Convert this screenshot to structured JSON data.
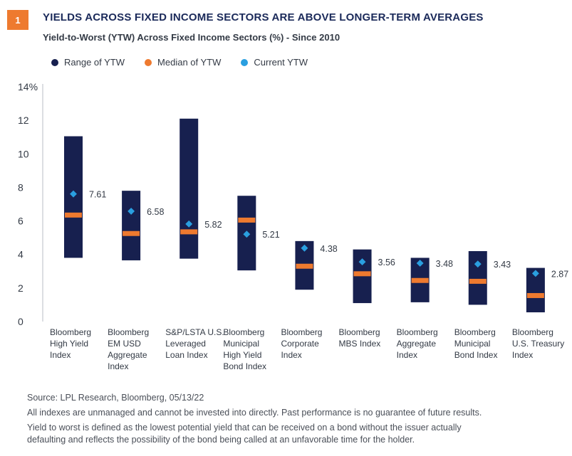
{
  "figure_number": "1",
  "colors": {
    "range": "#17204f",
    "median": "#ee7a2f",
    "current": "#2a9fe0",
    "badge": "#ee7a2f"
  },
  "chart_data": {
    "type": "range",
    "title": "YIELDS ACROSS FIXED INCOME SECTORS ARE ABOVE LONGER-TERM AVERAGES",
    "subtitle": "Yield-to-Worst (YTW) Across Fixed Income Sectors (%) - Since 2010",
    "legend": [
      "Range of YTW",
      "Median of YTW",
      "Current YTW"
    ],
    "ylim": [
      0,
      14
    ],
    "yticks": [
      "0",
      "2",
      "4",
      "6",
      "8",
      "10",
      "12",
      "14%"
    ],
    "yticks_values": [
      0,
      2,
      4,
      6,
      8,
      10,
      12,
      14
    ],
    "categories": [
      [
        "Bloomberg",
        "High Yield",
        "Index"
      ],
      [
        "Bloomberg",
        "EM USD",
        "Aggregate",
        "Index"
      ],
      [
        "S&P/LSTA U.S.",
        "Leveraged",
        "Loan Index"
      ],
      [
        "Bloomberg",
        "Municipal",
        "High Yield",
        "Bond Index"
      ],
      [
        "Bloomberg",
        "Corporate",
        "Index"
      ],
      [
        "Bloomberg",
        "MBS Index"
      ],
      [
        "Bloomberg",
        "Aggregate",
        "Index"
      ],
      [
        "Bloomberg",
        "Municipal",
        "Bond Index"
      ],
      [
        "Bloomberg",
        "U.S. Treasury",
        "Index"
      ]
    ],
    "series": {
      "range_low": [
        3.8,
        3.65,
        3.75,
        3.05,
        1.9,
        1.1,
        1.15,
        1.0,
        0.55
      ],
      "range_high": [
        11.05,
        7.8,
        12.1,
        7.5,
        4.8,
        4.3,
        3.8,
        4.2,
        3.2
      ],
      "median": [
        6.35,
        5.25,
        5.35,
        6.05,
        3.3,
        2.85,
        2.45,
        2.4,
        1.55
      ],
      "current": [
        7.61,
        6.58,
        5.82,
        5.21,
        4.38,
        3.56,
        3.48,
        3.43,
        2.87
      ],
      "current_labels": [
        "7.61",
        "6.58",
        "5.82",
        "5.21",
        "4.38",
        "3.56",
        "3.48",
        "3.43",
        "2.87"
      ]
    }
  },
  "footer": {
    "source": "Source: LPL Research, Bloomberg,  05/13/22",
    "disclaimer": "All indexes are unmanaged and cannot be invested into directly. Past performance is no guarantee of future results.",
    "definition_1": "Yield to worst is defined as the lowest potential yield that can be received on a bond without the issuer actually",
    "definition_2": "defaulting and reflects the possibility of the bond being called at an unfavorable time for the holder."
  }
}
